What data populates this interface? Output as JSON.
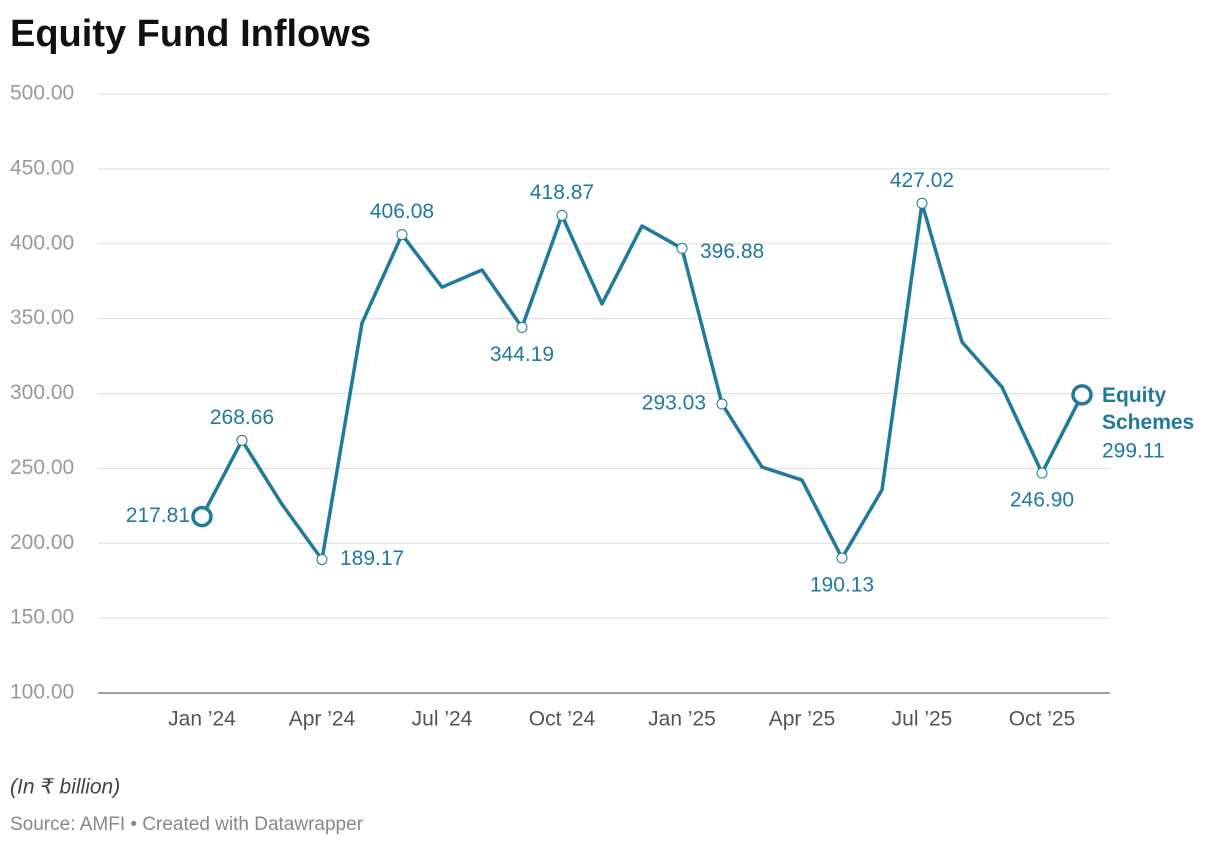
{
  "chart_data": {
    "type": "line",
    "title": "Equity Fund Inflows",
    "note": "(In ₹ billion)",
    "source": "Source: AMFI • Created with Datawrapper",
    "categories": [
      "Jan ’24",
      null,
      null,
      "Apr ’24",
      null,
      null,
      "Jul ’24",
      null,
      null,
      "Oct ’24",
      null,
      null,
      "Jan ’25",
      null,
      null,
      "Apr ’25",
      null,
      null,
      "Jul ’25",
      null,
      null,
      "Oct ’25",
      null
    ],
    "series": [
      {
        "name": "Equity Schemes",
        "color": "#217a9b",
        "values": [
          217.81,
          268.66,
          226,
          189.17,
          347,
          406.08,
          371,
          382.5,
          344.19,
          418.87,
          359.8,
          411.9,
          396.88,
          293.03,
          250.9,
          242.2,
          190.13,
          235.6,
          427.02,
          334.4,
          304.3,
          246.9,
          299.11
        ],
        "value_labels": [
          "217.81",
          "268.66",
          null,
          "189.17",
          null,
          "406.08",
          null,
          null,
          "344.19",
          "418.87",
          null,
          null,
          "396.88",
          "293.03",
          null,
          null,
          "190.13",
          null,
          "427.02",
          null,
          null,
          "246.90",
          "299.11"
        ]
      }
    ],
    "ylim": [
      100,
      500
    ],
    "yticks": [
      {
        "value": 100,
        "label": "100.00"
      },
      {
        "value": 150,
        "label": "150.00"
      },
      {
        "value": 200,
        "label": "200.00"
      },
      {
        "value": 250,
        "label": "250.00"
      },
      {
        "value": 300,
        "label": "300.00"
      },
      {
        "value": 350,
        "label": "350.00"
      },
      {
        "value": 400,
        "label": "400.00"
      },
      {
        "value": 450,
        "label": "450.00"
      },
      {
        "value": 500,
        "label": "500.00"
      }
    ],
    "grid": true
  }
}
